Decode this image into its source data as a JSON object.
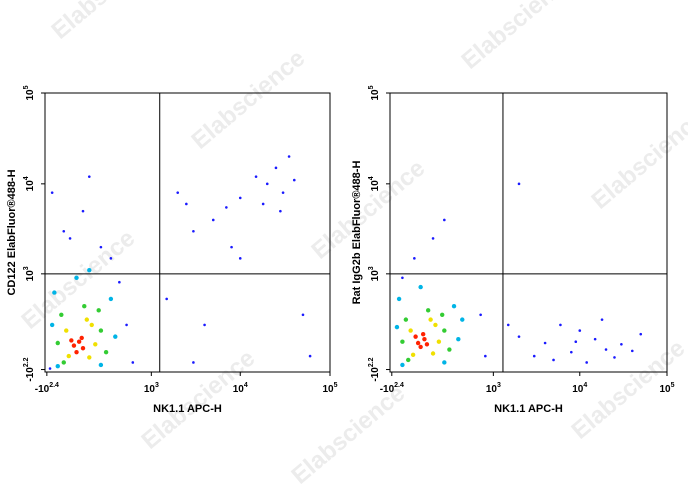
{
  "watermark": "Elabscience",
  "chart_data": [
    {
      "type": "scatter",
      "xlabel": "NK1.1 APC-H",
      "ylabel": "CD122 ElabFluor®488-H",
      "xlim": [
        -270,
        100000
      ],
      "ylim": [
        -180,
        100000
      ],
      "xticks": [
        {
          "value": -251.19,
          "label": "-10",
          "exponent": "2.4"
        },
        {
          "value": 1000,
          "label": "10",
          "exponent": "3"
        },
        {
          "value": 10000,
          "label": "10",
          "exponent": "4"
        },
        {
          "value": 100000,
          "label": "10",
          "exponent": "5"
        }
      ],
      "yticks": [
        {
          "value": -158.49,
          "label": "-10",
          "exponent": "2.2"
        },
        {
          "value": 1000,
          "label": "10",
          "exponent": "3"
        },
        {
          "value": 10000,
          "label": "10",
          "exponent": "4"
        },
        {
          "value": 100000,
          "label": "10",
          "exponent": "5"
        }
      ],
      "gates": {
        "x": 1250,
        "y": 1000
      },
      "series": [
        {
          "color": "#1a1aff",
          "x": [
            -100,
            50,
            200,
            -200,
            300,
            100,
            -50,
            400,
            500,
            -220,
            600,
            20000,
            30000,
            15000,
            25000,
            40000,
            18000,
            35000,
            10000,
            28000,
            3000,
            5000,
            2000,
            8000,
            1500,
            4000,
            3000,
            50000,
            10000,
            60000,
            2500,
            7000
          ],
          "values": [
            3000,
            5000,
            2000,
            8000,
            1500,
            12000,
            2500,
            800,
            200,
            -150,
            -100,
            10000,
            8000,
            12000,
            15000,
            11000,
            6000,
            20000,
            7000,
            5000,
            3000,
            4000,
            8000,
            2000,
            500,
            200,
            -100,
            300,
            1500,
            -50,
            6000,
            5500
          ]
        },
        {
          "color": "#00b4e6",
          "x": [
            -180,
            300,
            -150,
            350,
            0,
            200,
            100,
            -200
          ],
          "values": [
            600,
            500,
            -130,
            100,
            900,
            -120,
            1100,
            200
          ]
        },
        {
          "color": "#33cc33",
          "x": [
            -120,
            200,
            -100,
            250,
            60,
            180,
            -150
          ],
          "values": [
            300,
            150,
            -100,
            -20,
            400,
            350,
            50
          ]
        },
        {
          "color": "#f0e000",
          "x": [
            -80,
            100,
            120,
            -60,
            80,
            150
          ],
          "values": [
            150,
            -60,
            200,
            -50,
            250,
            40
          ]
        },
        {
          "color": "#ff2200",
          "x": [
            -20,
            20,
            50,
            0,
            40,
            -40
          ],
          "values": [
            30,
            60,
            10,
            -20,
            90,
            70
          ]
        }
      ]
    },
    {
      "type": "scatter",
      "xlabel": "NK1.1 APC-H",
      "ylabel": "Rat IgG2b ElabFluor®488-H",
      "xlim": [
        -270,
        100000
      ],
      "ylim": [
        -180,
        100000
      ],
      "xticks": [
        {
          "value": -251.19,
          "label": "-10",
          "exponent": "2.4"
        },
        {
          "value": 1000,
          "label": "10",
          "exponent": "3"
        },
        {
          "value": 10000,
          "label": "10",
          "exponent": "4"
        },
        {
          "value": 100000,
          "label": "10",
          "exponent": "5"
        }
      ],
      "yticks": [
        {
          "value": -158.49,
          "label": "-10",
          "exponent": "2.2"
        },
        {
          "value": 1000,
          "label": "10",
          "exponent": "3"
        },
        {
          "value": 10000,
          "label": "10",
          "exponent": "4"
        },
        {
          "value": 100000,
          "label": "10",
          "exponent": "5"
        }
      ],
      "gates": {
        "x": 1300,
        "y": 1000
      },
      "series": [
        {
          "color": "#1a1aff",
          "x": [
            -50,
            100,
            -150,
            200,
            2000,
            4000,
            8000,
            15000,
            20000,
            10000,
            30000,
            6000,
            25000,
            12000,
            3000,
            50000,
            1500,
            9000,
            18000,
            5000,
            40000,
            700,
            800,
            2000
          ],
          "values": [
            1500,
            2500,
            900,
            4000,
            100,
            50,
            -20,
            80,
            0,
            150,
            40,
            200,
            -60,
            -100,
            -50,
            120,
            200,
            60,
            250,
            -80,
            -10,
            300,
            -50,
            10000
          ]
        },
        {
          "color": "#00b4e6",
          "x": [
            -180,
            300,
            -150,
            350,
            0,
            200,
            -200,
            400
          ],
          "values": [
            500,
            400,
            -120,
            80,
            700,
            -100,
            180,
            250
          ]
        },
        {
          "color": "#33cc33",
          "x": [
            -120,
            200,
            -100,
            250,
            60,
            180,
            -150
          ],
          "values": [
            250,
            150,
            -80,
            0,
            350,
            300,
            60
          ]
        },
        {
          "color": "#f0e000",
          "x": [
            -80,
            100,
            120,
            -60,
            80,
            150
          ],
          "values": [
            150,
            -30,
            200,
            -40,
            250,
            60
          ]
        },
        {
          "color": "#ff2200",
          "x": [
            -20,
            30,
            0,
            50,
            -40,
            20
          ],
          "values": [
            50,
            80,
            20,
            40,
            100,
            120
          ]
        }
      ]
    }
  ]
}
